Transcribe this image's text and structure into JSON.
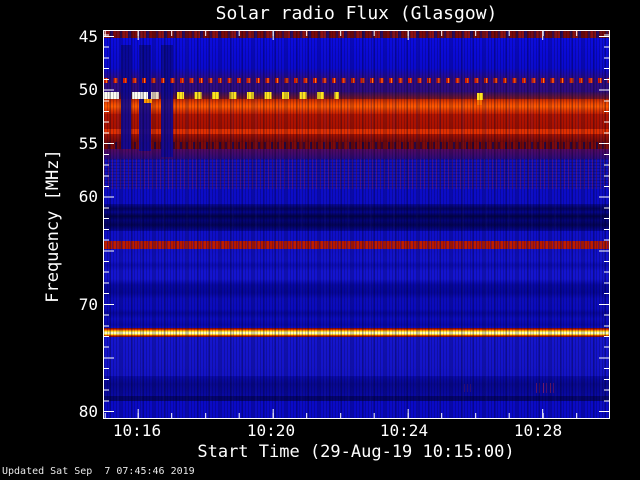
{
  "title": "Solar radio Flux (Glasgow)",
  "xaxis": {
    "label": "Start Time (29-Aug-19 10:15:00)",
    "ticks": [
      "10:16",
      "10:20",
      "10:24",
      "10:28"
    ],
    "start": "10:15:00",
    "end": "10:30:00",
    "minor_tick_interval_minutes": 1,
    "major_tick_interval_minutes": 4
  },
  "yaxis": {
    "label": "Frequency [MHz]",
    "ticks": [
      "45",
      "50",
      "55",
      "60",
      "70",
      "80"
    ],
    "range_mhz": [
      44.5,
      80.7
    ],
    "minor_tick_interval_mhz": 1,
    "major_tick_interval_mhz": 5
  },
  "footer": {
    "updated": "Updated Sat Sep  7 07:45:46 2019"
  },
  "colors": {
    "background": "#000000",
    "frame_and_text": "#ffffff",
    "base_blue": "#0a0ad0",
    "navy_band": "#020248",
    "indigo_zone": "#2e0c80",
    "emission_red": "#b21400",
    "emission_hot_orange": "#ff5a00",
    "rfi_yellow": "#ffe41e",
    "rfi_white": "#fdfdf2",
    "yellow_line_core": "#fffab4",
    "dotted_line_red": "#d41a00"
  },
  "chart_data": {
    "type": "heatmap",
    "title": "Solar radio Flux (Glasgow)",
    "xlabel": "Start Time (29-Aug-19 10:15:00)",
    "ylabel": "Frequency [MHz]",
    "x_range": [
      "10:15:00",
      "10:30:00"
    ],
    "x_ticks": [
      "10:16",
      "10:20",
      "10:24",
      "10:28"
    ],
    "y_ticks": [
      45,
      50,
      55,
      60,
      70,
      80
    ],
    "y_range": [
      44.5,
      80.7
    ],
    "legend": "none",
    "grid": false,
    "features": [
      {
        "name": "edge-strip",
        "freq_mhz": [
          44.5,
          45.2
        ],
        "time": "full",
        "intensity": "dark red speckled"
      },
      {
        "name": "quiet-background",
        "freq_mhz": [
          45.2,
          49.0
        ],
        "time": "full",
        "intensity": "blue"
      },
      {
        "name": "dotted-rfi-line",
        "freq_mhz": 50.0,
        "time": "full",
        "intensity": "red dots, ~17 s spacing"
      },
      {
        "name": "dashed-rfi-line",
        "freq_mhz": 51.0,
        "time": [
          "10:15:00",
          "10:22:00"
        ],
        "intensity": "bright white then yellow dashes, ~32 s spacing"
      },
      {
        "name": "strong-emission-band",
        "freq_mhz": [
          51.3,
          55.0
        ],
        "time": "full",
        "intensity": "saturated red, hottest orange core near 52 MHz"
      },
      {
        "name": "bright-line",
        "freq_mhz": 54.5,
        "time": "full",
        "intensity": "bright red"
      },
      {
        "name": "speckle-band",
        "freq_mhz": [
          56.5,
          59.0
        ],
        "time": "full",
        "intensity": "blue with red speckle"
      },
      {
        "name": "dark-band",
        "freq_mhz": [
          61.0,
          63.0
        ],
        "time": "full",
        "intensity": "dark navy"
      },
      {
        "name": "rfi-line",
        "freq_mhz": 64.5,
        "time": "full",
        "intensity": "red, noisy"
      },
      {
        "name": "rfi-line-bright",
        "freq_mhz": 72.7,
        "time": "full",
        "intensity": "yellow-white core with orange/red fringes"
      },
      {
        "name": "short-burst",
        "freq_mhz": 51.0,
        "time": "10:29:15",
        "intensity": "small bright yellow tick"
      },
      {
        "name": "dropout-stripes",
        "freq_mhz": [
          46.0,
          55.5
        ],
        "times": [
          "10:15:30",
          "10:16:05",
          "10:16:45"
        ],
        "intensity": "dark blue vertical gaps"
      },
      {
        "name": "faint-speckles",
        "freq_mhz": 77.5,
        "time": "10:28",
        "intensity": "faint red dots"
      }
    ]
  }
}
